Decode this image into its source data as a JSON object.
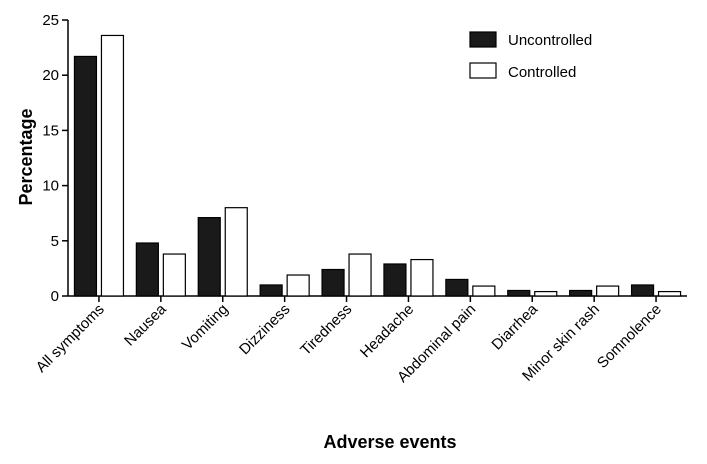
{
  "chart_data": {
    "type": "bar",
    "title": "",
    "xlabel": "Adverse events",
    "ylabel": "Percentage",
    "ylim": [
      0,
      25
    ],
    "yticks": [
      0,
      5,
      10,
      15,
      20,
      25
    ],
    "grid": false,
    "legend_position": "top-right",
    "categories": [
      "All symptoms",
      "Nausea",
      "Vomiting",
      "Dizziness",
      "Tiredness",
      "Headache",
      "Abdominal pain",
      "Diarrhea",
      "Minor skin rash",
      "Somnolence"
    ],
    "series": [
      {
        "name": "Uncontrolled",
        "color": "#1a1a1a",
        "values": [
          21.7,
          4.8,
          7.1,
          1.0,
          2.4,
          2.9,
          1.5,
          0.5,
          0.5,
          1.0
        ]
      },
      {
        "name": "Controlled",
        "color": "#ffffff",
        "values": [
          23.6,
          3.8,
          8.0,
          1.9,
          3.8,
          3.3,
          0.9,
          0.4,
          0.9,
          0.4
        ]
      }
    ]
  }
}
